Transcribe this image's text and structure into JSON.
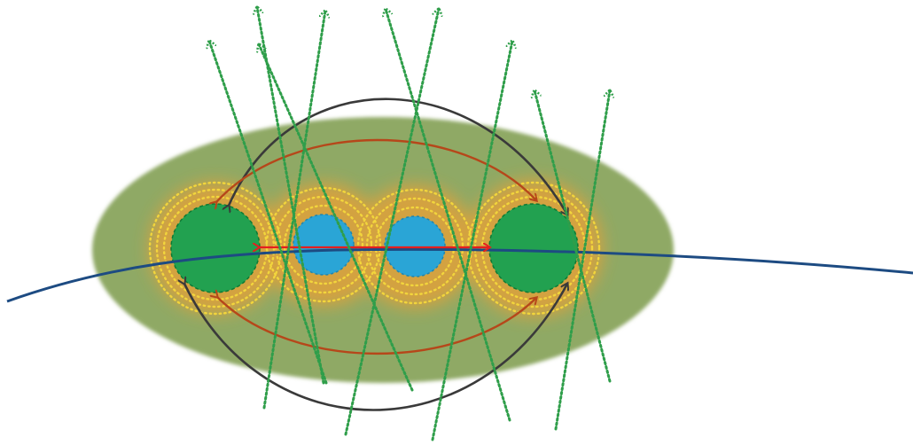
{
  "diagram": {
    "colors": {
      "background": "#ffffff",
      "ellipse_fill": "#8fa965",
      "halo": "#e0a13a",
      "ring": "#f2d53c",
      "outer_node": "#22a150",
      "outer_node_stroke": "#0d7a35",
      "inner_node": "#2aa5d6",
      "inner_node_stroke": "#1f86b0",
      "dark_arrow": "#3a3a3a",
      "brown_arrow": "#b6471a",
      "red_arrow": "#e51e1e",
      "green_arrow": "#2f9e4a",
      "curve": "#1d4b82"
    }
  }
}
